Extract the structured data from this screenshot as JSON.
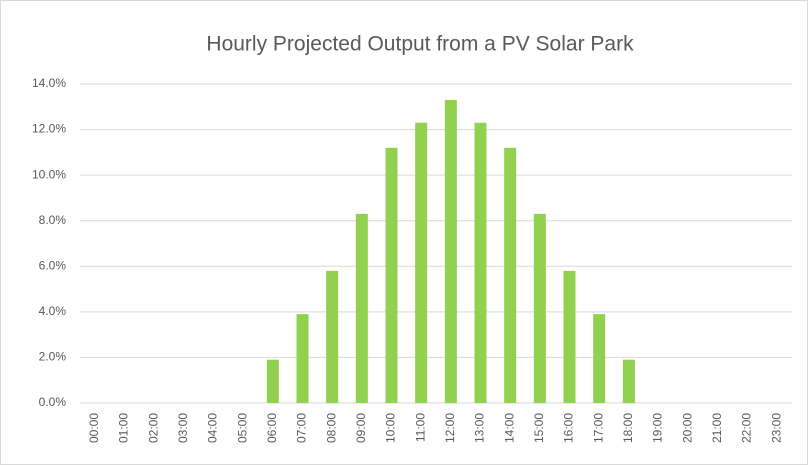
{
  "chart_data": {
    "type": "bar",
    "title": "Hourly Projected Output from a PV Solar Park",
    "categories": [
      "00:00",
      "01:00",
      "02:00",
      "03:00",
      "04:00",
      "05:00",
      "06:00",
      "07:00",
      "08:00",
      "09:00",
      "10:00",
      "11:00",
      "12:00",
      "13:00",
      "14:00",
      "15:00",
      "16:00",
      "17:00",
      "18:00",
      "19:00",
      "20:00",
      "21:00",
      "22:00",
      "23:00"
    ],
    "values": [
      0,
      0,
      0,
      0,
      0,
      0,
      1.9,
      3.9,
      5.8,
      8.3,
      11.2,
      12.3,
      13.3,
      12.3,
      11.2,
      8.3,
      5.8,
      3.9,
      1.9,
      0,
      0,
      0,
      0,
      0
    ],
    "color": "#92d050",
    "ylim": [
      0,
      14
    ],
    "yticks": [
      {
        "value": 0,
        "label": "0.0%"
      },
      {
        "value": 2,
        "label": "2.0%"
      },
      {
        "value": 4,
        "label": "4.0%"
      },
      {
        "value": 6,
        "label": "6.0%"
      },
      {
        "value": 8,
        "label": "8.0%"
      },
      {
        "value": 10,
        "label": "10.0%"
      },
      {
        "value": 12,
        "label": "12.0%"
      },
      {
        "value": 14,
        "label": "14.0%"
      }
    ],
    "grid": true
  }
}
